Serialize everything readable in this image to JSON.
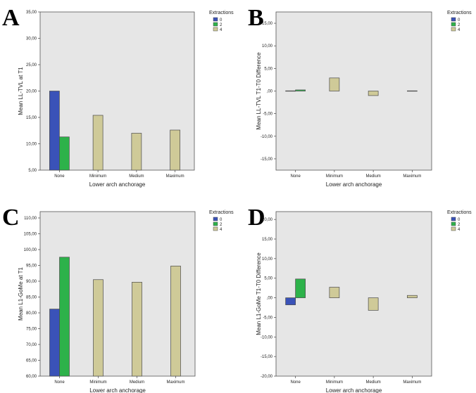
{
  "legend": {
    "title": "Extractions",
    "items": [
      {
        "label": "0",
        "color": "#3a52b8"
      },
      {
        "label": "2",
        "color": "#2db24a"
      },
      {
        "label": "4",
        "color": "#cfca98"
      }
    ]
  },
  "colors": {
    "plot_bg": "#e6e6e6",
    "border": "#555555"
  },
  "chart_data": [
    {
      "panel": "A",
      "type": "bar",
      "title": "",
      "xlabel": "Lower arch anchorage",
      "ylabel": "Mean LL-TVL at T1",
      "categories": [
        "None",
        "Minimum",
        "Medium",
        "Maximum"
      ],
      "ylim": [
        5,
        35
      ],
      "baseline": 5,
      "yticks": [
        5,
        10,
        15,
        20,
        25,
        30,
        35
      ],
      "yticklabels": [
        "5,00",
        "10,00",
        "15,00",
        "20,00",
        "25,00",
        "30,00",
        "35,00"
      ],
      "series": [
        {
          "name": "0",
          "values": [
            20.0,
            null,
            null,
            null
          ]
        },
        {
          "name": "2",
          "values": [
            11.3,
            null,
            null,
            null
          ]
        },
        {
          "name": "4",
          "values": [
            null,
            15.4,
            12.0,
            12.6
          ]
        }
      ]
    },
    {
      "panel": "B",
      "type": "bar",
      "title": "",
      "xlabel": "Lower arch anchorage",
      "ylabel": "Mean LL-TVL T1-T0 Difference",
      "categories": [
        "None",
        "Minimum",
        "Medium",
        "Maximum"
      ],
      "ylim": [
        -17.5,
        17.5
      ],
      "baseline": 0,
      "yticks": [
        -15,
        -10,
        -5,
        0,
        5,
        10,
        15
      ],
      "yticklabels": [
        "-15,00",
        "-10,00",
        "-5,00",
        ",00",
        "5,00",
        "10,00",
        "15,00"
      ],
      "series": [
        {
          "name": "0",
          "values": [
            0.05,
            null,
            null,
            null
          ]
        },
        {
          "name": "2",
          "values": [
            0.25,
            null,
            null,
            null
          ]
        },
        {
          "name": "4",
          "values": [
            null,
            2.9,
            -1.0,
            0.05
          ]
        }
      ]
    },
    {
      "panel": "C",
      "type": "bar",
      "title": "",
      "xlabel": "Lower arch anchorage",
      "ylabel": "Mean L1-GoMe at T1",
      "categories": [
        "None",
        "Minimum",
        "Medium",
        "Maximum"
      ],
      "ylim": [
        60,
        112
      ],
      "baseline": 60,
      "yticks": [
        60,
        65,
        70,
        75,
        80,
        85,
        90,
        95,
        100,
        105,
        110
      ],
      "yticklabels": [
        "60,00",
        "65,00",
        "70,00",
        "75,00",
        "80,00",
        "85,00",
        "90,00",
        "95,00",
        "100,00",
        "105,00",
        "110,00"
      ],
      "series": [
        {
          "name": "0",
          "values": [
            81.2,
            null,
            null,
            null
          ]
        },
        {
          "name": "2",
          "values": [
            97.6,
            null,
            null,
            null
          ]
        },
        {
          "name": "4",
          "values": [
            null,
            90.5,
            89.7,
            94.8
          ]
        }
      ]
    },
    {
      "panel": "D",
      "type": "bar",
      "title": "",
      "xlabel": "Lower arch anchorage",
      "ylabel": "Mean L1-GoMe T1-T0 Difference",
      "categories": [
        "None",
        "Minimum",
        "Medium",
        "Maximum"
      ],
      "ylim": [
        -20,
        22
      ],
      "baseline": 0,
      "yticks": [
        -20,
        -15,
        -10,
        -5,
        0,
        5,
        10,
        15,
        20
      ],
      "yticklabels": [
        "-20,00",
        "-15,00",
        "-10,00",
        "-5,00",
        ",00",
        "5,00",
        "10,00",
        "15,00",
        "20,00"
      ],
      "series": [
        {
          "name": "0",
          "values": [
            -1.8,
            null,
            null,
            null
          ]
        },
        {
          "name": "2",
          "values": [
            4.8,
            null,
            null,
            null
          ]
        },
        {
          "name": "4",
          "values": [
            null,
            2.7,
            -3.2,
            0.6
          ]
        }
      ]
    }
  ]
}
